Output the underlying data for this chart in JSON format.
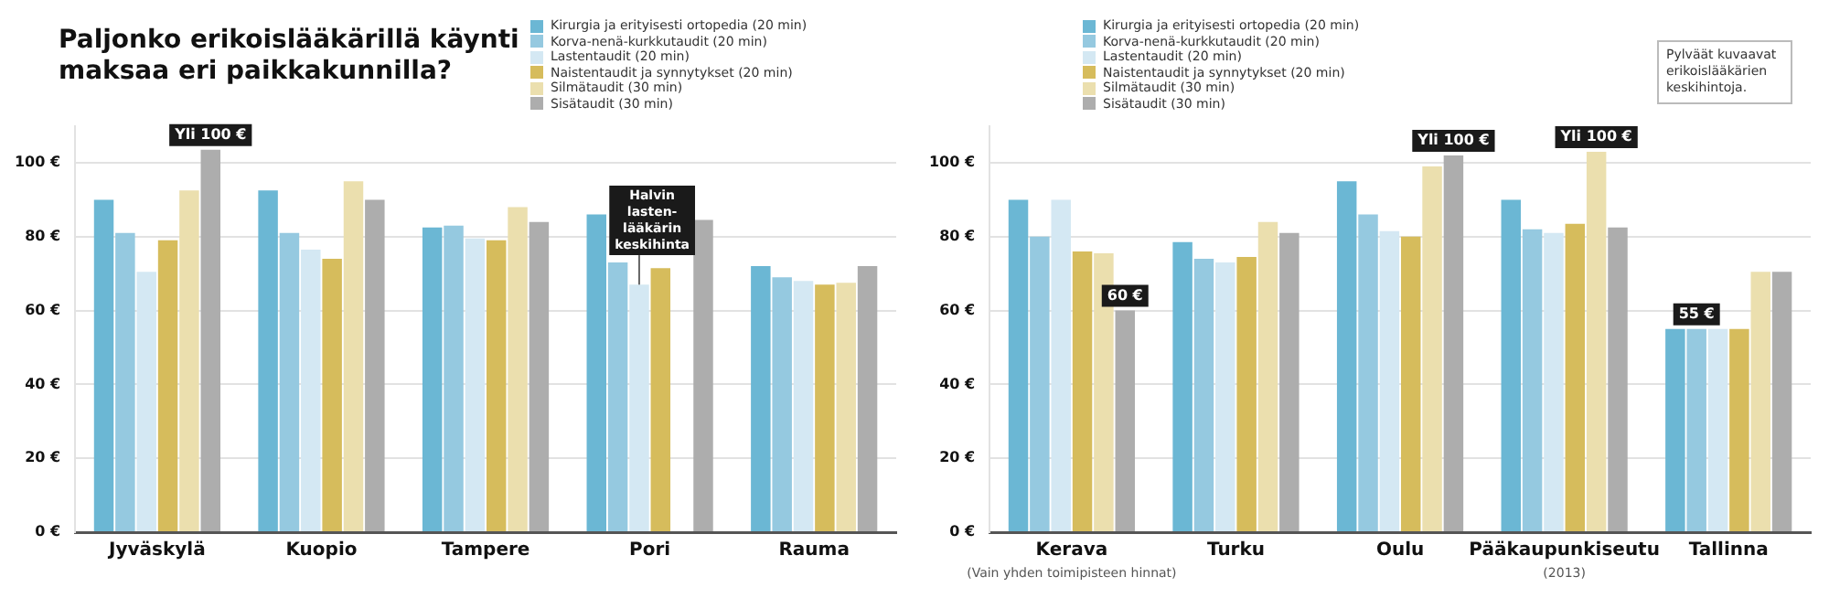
{
  "chart_data": [
    {
      "type": "bar",
      "title": "Paljonko erikoislääkärillä käynti maksaa eri paikkakunnilla?",
      "legend": "top",
      "grid": "y",
      "categories": [
        "Jyväskylä",
        "Kuopio",
        "Tampere",
        "Pori",
        "Rauma"
      ],
      "ylim": [
        0,
        110
      ],
      "yticks": [
        {
          "value": 0,
          "label": "0 €"
        },
        {
          "value": 20,
          "label": "20 €"
        },
        {
          "value": 40,
          "label": "40 €"
        },
        {
          "value": 60,
          "label": "60 €"
        },
        {
          "value": 80,
          "label": "80 €"
        },
        {
          "value": 100,
          "label": "100 €"
        }
      ],
      "series": [
        {
          "name": "Kirurgia ja erityisesti ortopedia (20 min)",
          "color": "#6bb7d4",
          "values": [
            90,
            92.5,
            82.5,
            86,
            72
          ]
        },
        {
          "name": "Korva-nenä-kurkkutaudit (20 min)",
          "color": "#95c9e0",
          "values": [
            81,
            81,
            83,
            73,
            69
          ]
        },
        {
          "name": "Lastentaudit (20 min)",
          "color": "#d4e8f3",
          "values": [
            70.5,
            76.5,
            79.5,
            67,
            68
          ]
        },
        {
          "name": "Naistentaudit ja synnytykset (20 min)",
          "color": "#d6bc5c",
          "values": [
            79,
            74,
            79,
            71.5,
            67
          ]
        },
        {
          "name": "Silmätaudit (30 min)",
          "color": "#ebdfae",
          "values": [
            92.5,
            95,
            88,
            null,
            67.5
          ]
        },
        {
          "name": "Sisätaudit (30 min)",
          "color": "#adadad",
          "values": [
            103.5,
            90,
            84,
            84.5,
            72
          ],
          "value_labels": [
            "Yli 100 €",
            null,
            null,
            null,
            null
          ]
        }
      ],
      "annotations": [
        {
          "text": "Halvin lasten-\nlääkärin keskihinta",
          "x": "Pori",
          "y": 67
        }
      ]
    },
    {
      "type": "bar",
      "legend": "top",
      "grid": "y",
      "categories": [
        "Kerava\n(Vain yhden toimipisteen hinnat)",
        "Turku",
        "Oulu",
        "Pääkaupunkiseutu\n(2013)",
        "Tallinna"
      ],
      "ylim": [
        0,
        110
      ],
      "yticks": [
        {
          "value": 0,
          "label": "0 €"
        },
        {
          "value": 20,
          "label": "20 €"
        },
        {
          "value": 40,
          "label": "40 €"
        },
        {
          "value": 60,
          "label": "60 €"
        },
        {
          "value": 80,
          "label": "80 €"
        },
        {
          "value": 100,
          "label": "100 €"
        }
      ],
      "series": [
        {
          "name": "Kirurgia ja erityisesti ortopedia (20 min)",
          "color": "#6bb7d4",
          "values": [
            90,
            78.5,
            95,
            90,
            55
          ]
        },
        {
          "name": "Korva-nenä-kurkkutaudit (20 min)",
          "color": "#95c9e0",
          "values": [
            80,
            74,
            86,
            82,
            55
          ],
          "value_labels": [
            null,
            null,
            null,
            null,
            "55 €"
          ]
        },
        {
          "name": "Lastentaudit (20 min)",
          "color": "#d4e8f3",
          "values": [
            90,
            73,
            81.5,
            81,
            55
          ]
        },
        {
          "name": "Naistentaudit ja synnytykset (20 min)",
          "color": "#d6bc5c",
          "values": [
            76,
            74.5,
            80,
            83.5,
            55
          ]
        },
        {
          "name": "Silmätaudit (30 min)",
          "color": "#ebdfae",
          "values": [
            75.5,
            84,
            99,
            103,
            70.5
          ],
          "value_labels": [
            null,
            null,
            null,
            "Yli 100 €",
            null
          ]
        },
        {
          "name": "Sisätaudit (30 min)",
          "color": "#adadad",
          "values": [
            60,
            81,
            102,
            82.5,
            70.5
          ],
          "value_labels": [
            "60 €",
            null,
            "Yli 100 €",
            null,
            null
          ]
        }
      ],
      "annotations": [
        "Pylväät kuvaavat erikoislääkärien keskihintoja."
      ]
    }
  ]
}
